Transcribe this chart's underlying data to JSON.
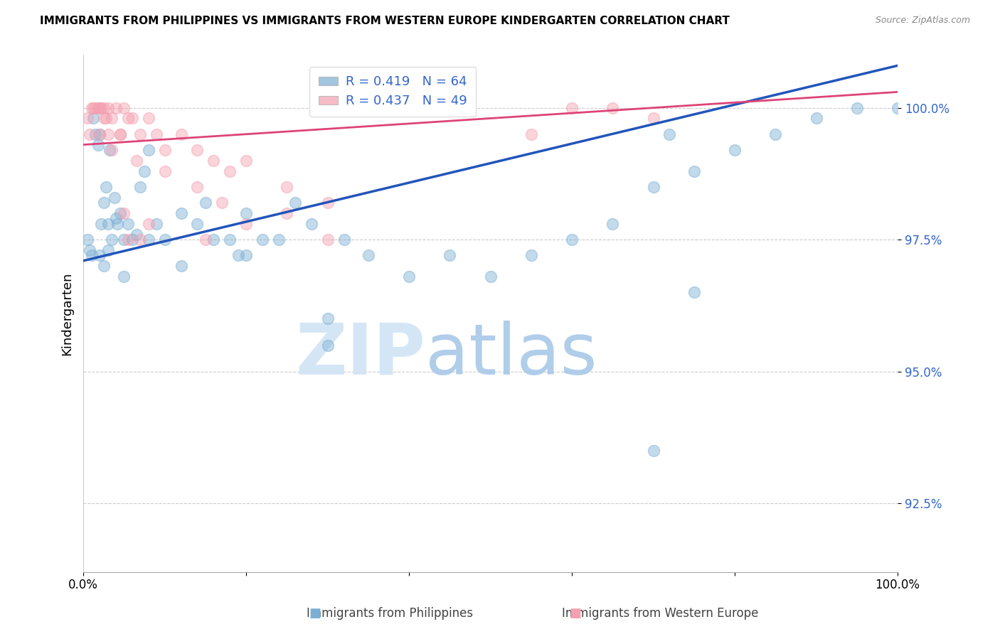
{
  "title": "IMMIGRANTS FROM PHILIPPINES VS IMMIGRANTS FROM WESTERN EUROPE KINDERGARTEN CORRELATION CHART",
  "source": "Source: ZipAtlas.com",
  "ylabel": "Kindergarten",
  "yticks": [
    92.5,
    95.0,
    97.5,
    100.0
  ],
  "ytick_labels": [
    "92.5%",
    "95.0%",
    "97.5%",
    "100.0%"
  ],
  "xlim": [
    0.0,
    100.0
  ],
  "ylim": [
    91.2,
    101.0
  ],
  "legend_blue_R": "R = 0.419",
  "legend_blue_N": "N = 64",
  "legend_pink_R": "R = 0.437",
  "legend_pink_N": "N = 49",
  "legend_blue_label": "Immigrants from Philippines",
  "legend_pink_label": "Immigrants from Western Europe",
  "blue_color": "#7BAFD4",
  "pink_color": "#F4A0B0",
  "blue_line_color": "#2255BB",
  "pink_line_color": "#DD4477",
  "watermark_zip": "ZIP",
  "watermark_atlas": "atlas",
  "blue_points_x": [
    0.5,
    0.8,
    1.0,
    1.2,
    1.5,
    1.8,
    2.0,
    2.2,
    2.5,
    2.8,
    3.0,
    3.2,
    3.5,
    3.8,
    4.0,
    4.2,
    4.5,
    5.0,
    5.5,
    6.0,
    6.5,
    7.0,
    7.5,
    8.0,
    9.0,
    10.0,
    12.0,
    14.0,
    15.0,
    16.0,
    18.0,
    19.0,
    20.0,
    22.0,
    24.0,
    26.0,
    28.0,
    30.0,
    32.0,
    35.0,
    40.0,
    45.0,
    50.0,
    55.0,
    60.0,
    65.0,
    70.0,
    72.0,
    75.0,
    80.0,
    85.0,
    90.0,
    95.0,
    100.0,
    2.0,
    2.5,
    3.0,
    5.0,
    8.0,
    12.0,
    20.0,
    30.0,
    70.0,
    75.0
  ],
  "blue_points_y": [
    97.5,
    97.3,
    97.2,
    99.8,
    99.5,
    99.3,
    99.5,
    97.8,
    98.2,
    98.5,
    97.8,
    99.2,
    97.5,
    98.3,
    97.9,
    97.8,
    98.0,
    97.5,
    97.8,
    97.5,
    97.6,
    98.5,
    98.8,
    99.2,
    97.8,
    97.5,
    98.0,
    97.8,
    98.2,
    97.5,
    97.5,
    97.2,
    98.0,
    97.5,
    97.5,
    98.2,
    97.8,
    96.0,
    97.5,
    97.2,
    96.8,
    97.2,
    96.8,
    97.2,
    97.5,
    97.8,
    98.5,
    99.5,
    98.8,
    99.2,
    99.5,
    99.8,
    100.0,
    100.0,
    97.2,
    97.0,
    97.3,
    96.8,
    97.5,
    97.0,
    97.2,
    95.5,
    93.5,
    96.5
  ],
  "pink_points_x": [
    0.5,
    0.8,
    1.0,
    1.2,
    1.5,
    1.8,
    2.0,
    2.2,
    2.5,
    2.8,
    3.0,
    3.5,
    4.0,
    4.5,
    5.0,
    5.5,
    6.0,
    7.0,
    8.0,
    9.0,
    10.0,
    12.0,
    14.0,
    16.0,
    18.0,
    20.0,
    25.0,
    30.0,
    2.0,
    2.5,
    3.0,
    3.5,
    4.5,
    5.0,
    6.5,
    8.0,
    10.0,
    14.0,
    17.0,
    20.0,
    25.0,
    30.0,
    55.0,
    60.0,
    65.0,
    70.0,
    5.5,
    7.0,
    15.0
  ],
  "pink_points_y": [
    99.8,
    99.5,
    100.0,
    100.0,
    100.0,
    100.0,
    100.0,
    100.0,
    100.0,
    99.8,
    100.0,
    99.8,
    100.0,
    99.5,
    100.0,
    99.8,
    99.8,
    99.5,
    99.8,
    99.5,
    99.2,
    99.5,
    99.2,
    99.0,
    98.8,
    99.0,
    98.5,
    98.2,
    99.5,
    99.8,
    99.5,
    99.2,
    99.5,
    98.0,
    99.0,
    97.8,
    98.8,
    98.5,
    98.2,
    97.8,
    98.0,
    97.5,
    99.5,
    100.0,
    100.0,
    99.8,
    97.5,
    97.5,
    97.5
  ],
  "blue_trend_y_start": 97.1,
  "blue_trend_y_end": 100.8,
  "pink_trend_y_start": 99.3,
  "pink_trend_y_end": 100.3
}
